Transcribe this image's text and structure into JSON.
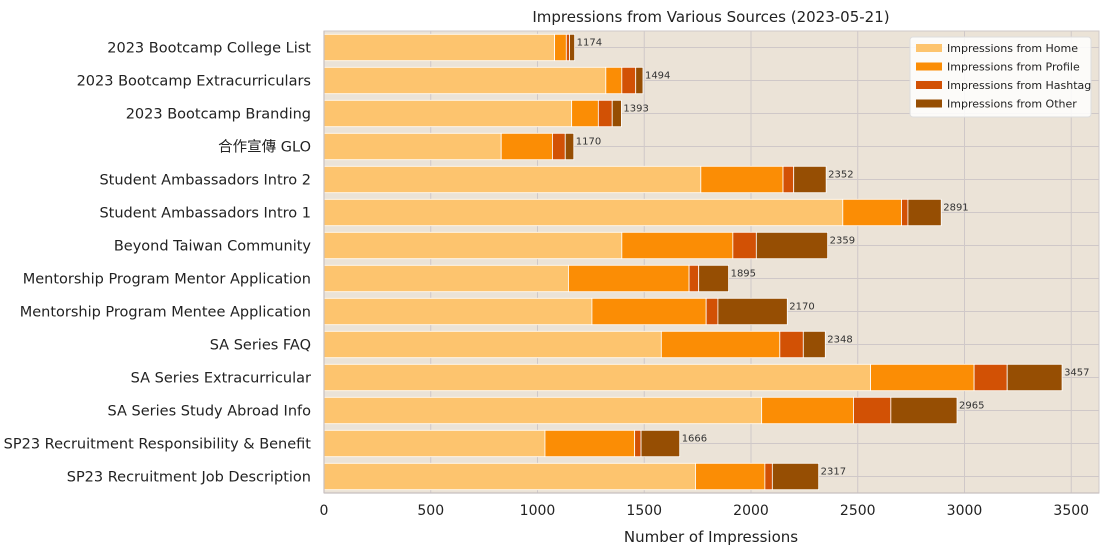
{
  "chart_data": {
    "type": "bar",
    "orientation": "horizontal",
    "stacked": true,
    "title": "Impressions from Various Sources (2023-05-21)",
    "xlabel": "Number of Impressions",
    "ylabel": "",
    "xlim": [
      0,
      3630
    ],
    "xticks": [
      0,
      500,
      1000,
      1500,
      2000,
      2500,
      3000,
      3500
    ],
    "grid": true,
    "legend_position": "top-right",
    "background": "#ebe3d7",
    "categories": [
      "SP23 Recruitment Job Description",
      "SP23 Recruitment Responsibility & Benefit",
      "SA Series Study Abroad Info",
      "SA Series Extracurricular",
      "SA Series FAQ",
      "Mentorship Program Mentee Application",
      "Mentorship Program Mentor Application",
      "Beyond Taiwan Community",
      "Student Ambassadors Intro 1",
      "Student Ambassadors Intro 2",
      "合作宣傳 GLO",
      "2023 Bootcamp Branding",
      "2023 Bootcamp Extracurriculars",
      "2023 Bootcamp College List"
    ],
    "series": [
      {
        "name": "Impressions from Home",
        "color": "#fdc46e",
        "values": [
          1740,
          1035,
          2050,
          2560,
          1580,
          1255,
          1145,
          1395,
          2430,
          1765,
          830,
          1160,
          1320,
          1080
        ]
      },
      {
        "name": "Impressions from Profile",
        "color": "#fb8d05",
        "values": [
          325,
          420,
          430,
          485,
          555,
          535,
          565,
          520,
          275,
          385,
          240,
          125,
          75,
          55
        ]
      },
      {
        "name": "Impressions from Hashtag",
        "color": "#d25105",
        "values": [
          35,
          30,
          175,
          155,
          110,
          55,
          45,
          110,
          30,
          50,
          60,
          65,
          65,
          15
        ]
      },
      {
        "name": "Impressions from Other",
        "color": "#964e03",
        "values": [
          217,
          181,
          310,
          257,
          103,
          325,
          140,
          334,
          156,
          152,
          40,
          43,
          34,
          24
        ]
      }
    ],
    "totals": [
      2317,
      1666,
      2965,
      3457,
      2348,
      2170,
      1895,
      2359,
      2891,
      2352,
      1170,
      1393,
      1494,
      1174
    ]
  }
}
